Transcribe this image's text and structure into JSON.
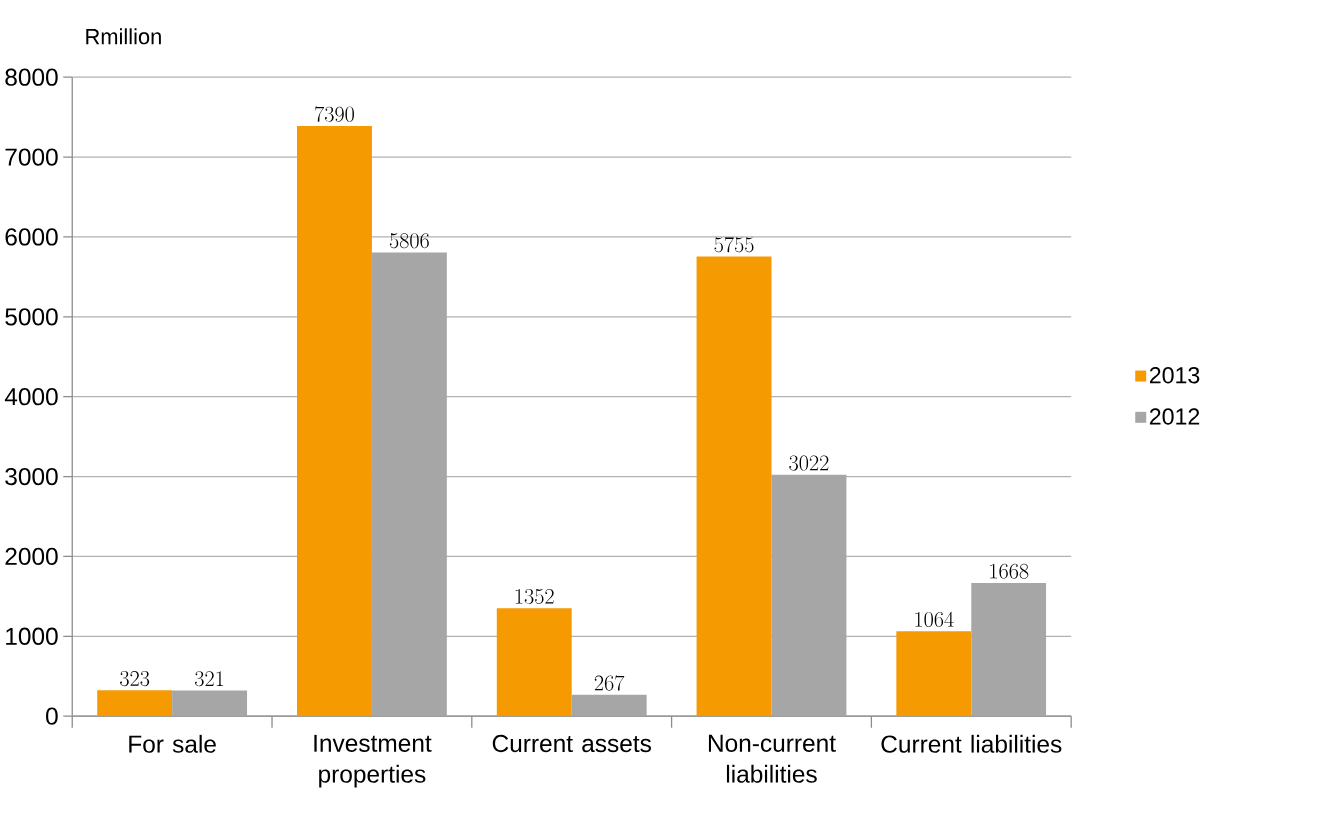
{
  "chart_data": {
    "type": "bar",
    "ylabel": "Rmillion",
    "categories": [
      "For sale",
      "Investment properties",
      "Current assets",
      "Non-current liabilities",
      "Current liabilities"
    ],
    "series": [
      {
        "name": "2013",
        "color": "#f59a00",
        "values": [
          323,
          7390,
          1352,
          5755,
          1064
        ]
      },
      {
        "name": "2012",
        "color": "#a6a6a6",
        "values": [
          321,
          5806,
          267,
          3022,
          1668
        ]
      }
    ],
    "ylim": [
      0,
      8000
    ],
    "yticks": [
      0,
      1000,
      2000,
      3000,
      4000,
      5000,
      6000,
      7000,
      8000
    ],
    "grid": "y",
    "legend": "right",
    "data_labels": true
  }
}
